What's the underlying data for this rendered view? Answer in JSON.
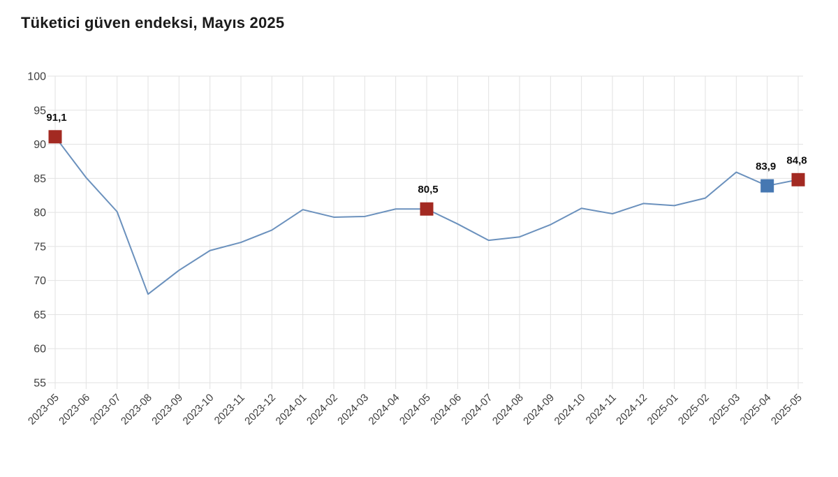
{
  "page": {
    "title": "Tüketici güven endeksi, Mayıs 2025"
  },
  "chart_data": {
    "type": "line",
    "title": "Tüketici güven endeksi, Mayıs 2025",
    "x": [
      "2023-05",
      "2023-06",
      "2023-07",
      "2023-08",
      "2023-09",
      "2023-10",
      "2023-11",
      "2023-12",
      "2024-01",
      "2024-02",
      "2024-03",
      "2024-04",
      "2024-05",
      "2024-06",
      "2024-07",
      "2024-08",
      "2024-09",
      "2024-10",
      "2024-11",
      "2024-12",
      "2025-01",
      "2025-02",
      "2025-03",
      "2025-04",
      "2025-05"
    ],
    "values": [
      91.1,
      85.1,
      80.1,
      68.0,
      71.5,
      74.4,
      75.6,
      77.4,
      80.4,
      79.3,
      79.4,
      80.5,
      80.5,
      78.3,
      75.9,
      76.4,
      78.2,
      80.6,
      79.8,
      81.3,
      81.0,
      82.1,
      85.9,
      83.9,
      84.8
    ],
    "ylim": [
      55,
      100
    ],
    "ytick_step": 5,
    "grid": true,
    "legend": "none",
    "line_color": "#6b91bd",
    "annotations": [
      {
        "index": 0,
        "label": "91,1",
        "marker_color": "#a32a22",
        "dx": 2
      },
      {
        "index": 12,
        "label": "80,5",
        "marker_color": "#a32a22",
        "dx": 2
      },
      {
        "index": 23,
        "label": "83,9",
        "marker_color": "#4678b2",
        "dx": -2
      },
      {
        "index": 24,
        "label": "84,8",
        "marker_color": "#a32a22",
        "dx": -2
      }
    ]
  }
}
